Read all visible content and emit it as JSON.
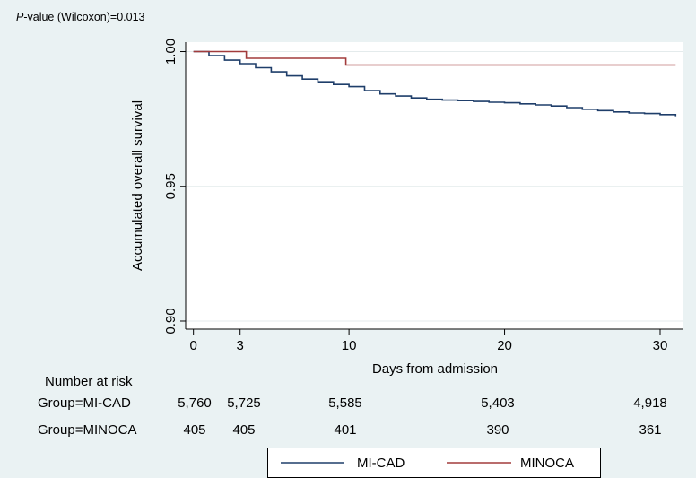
{
  "header": {
    "pvalue_italic": "P",
    "pvalue_rest": "-value (Wilcoxon)=0.013"
  },
  "chart_data": {
    "type": "line",
    "xlabel": "Days from admission",
    "ylabel": "Accumulated overall survival",
    "xlim": [
      -0.5,
      31.5
    ],
    "ylim": [
      0.897,
      1.0035
    ],
    "x_ticks": [
      0,
      3,
      10,
      20,
      30
    ],
    "y_ticks": [
      0.9,
      0.95,
      1.0
    ],
    "y_tick_labels": [
      "0.90",
      "0.95",
      "1.00"
    ],
    "grid": true,
    "legend_position": "bottom",
    "series": [
      {
        "name": "MI-CAD",
        "color": "#1f3e6a",
        "step": true,
        "x": [
          0,
          1,
          2,
          3,
          4,
          5,
          6,
          7,
          8,
          9,
          10,
          11,
          12,
          13,
          14,
          15,
          16,
          17,
          18,
          19,
          20,
          21,
          22,
          23,
          24,
          25,
          26,
          27,
          28,
          29,
          30,
          31
        ],
        "y": [
          1.0,
          0.9985,
          0.9968,
          0.9955,
          0.994,
          0.9925,
          0.991,
          0.9898,
          0.9888,
          0.9878,
          0.987,
          0.9855,
          0.9843,
          0.9835,
          0.9828,
          0.9823,
          0.982,
          0.9818,
          0.9815,
          0.9812,
          0.981,
          0.9806,
          0.9802,
          0.9798,
          0.9792,
          0.9786,
          0.9781,
          0.9776,
          0.9772,
          0.977,
          0.9766,
          0.976
        ]
      },
      {
        "name": "MINOCA",
        "color": "#a23b3b",
        "step": true,
        "x": [
          0,
          3.4,
          9.8,
          31
        ],
        "y": [
          1.0,
          0.9975,
          0.995,
          0.995
        ]
      }
    ]
  },
  "risk_table": {
    "title": "Number at risk",
    "rows": [
      {
        "label": "Group=MI-CAD",
        "values": [
          "5,760",
          "5,725",
          "5,585",
          "5,403",
          "4,918"
        ]
      },
      {
        "label": "Group=MINOCA",
        "values": [
          "405",
          "405",
          "401",
          "390",
          "361"
        ]
      }
    ]
  }
}
